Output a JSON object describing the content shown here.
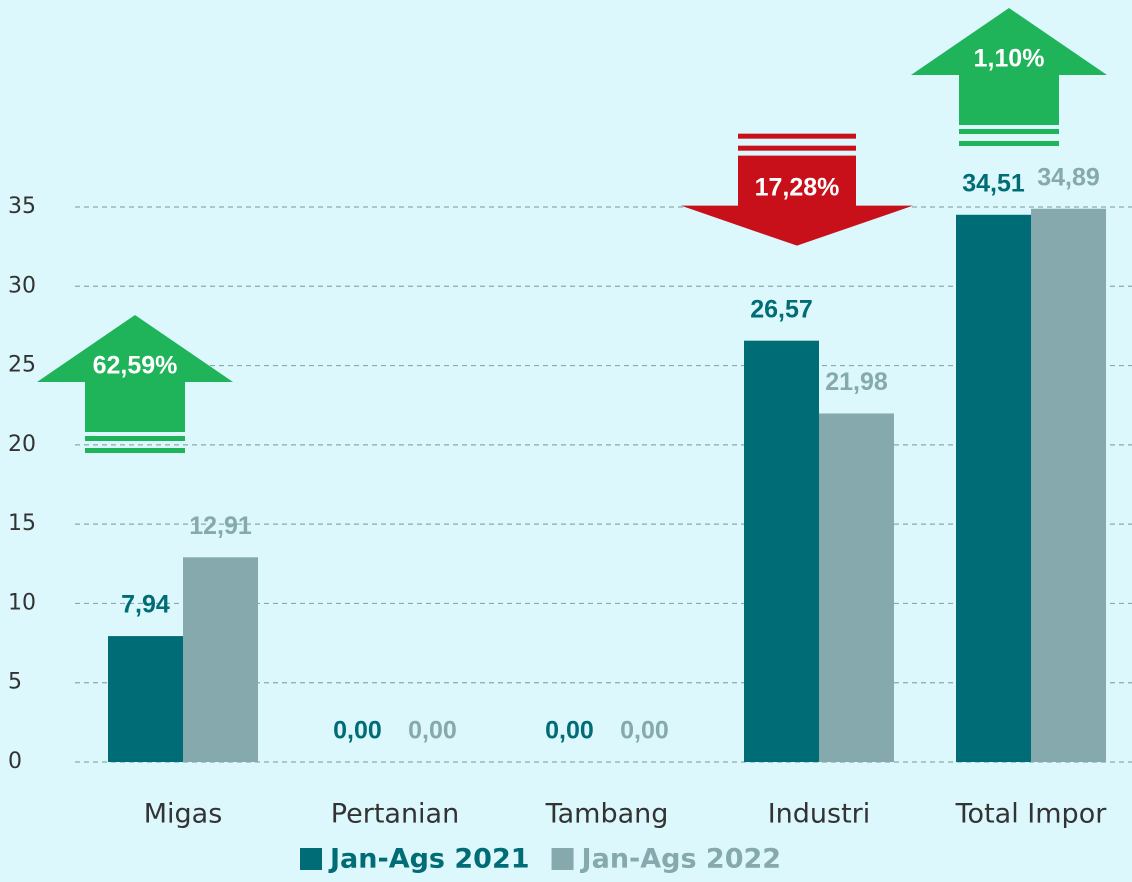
{
  "chart_data": {
    "type": "bar",
    "categories": [
      "Migas",
      "Pertanian",
      "Tambang",
      "Industri",
      "Total Impor"
    ],
    "series": [
      {
        "name": "Jan-Ags 2021",
        "color": "#006c75",
        "values": [
          7.94,
          0,
          0,
          26.57,
          34.51
        ],
        "value_labels": [
          "7,94",
          "0,00",
          "0,00",
          "26,57",
          "34,51"
        ]
      },
      {
        "name": "Jan-Ags 2022",
        "color": "#85a9ac",
        "values": [
          12.91,
          0,
          0,
          21.98,
          34.89
        ],
        "value_labels": [
          "12,91",
          "0,00",
          "0,00",
          "21,98",
          "34,89"
        ]
      }
    ],
    "ylim": [
      0,
      35
    ],
    "yticks": [
      0,
      5,
      10,
      15,
      20,
      25,
      30,
      35
    ],
    "grid": true,
    "legend": "bottom",
    "annotations": [
      {
        "text": "62,59%",
        "direction": "up",
        "color": "#1fb35a",
        "category": "Migas"
      },
      {
        "text": "17,28%",
        "direction": "down",
        "color": "#c8101b",
        "category": "Industri"
      },
      {
        "text": "1,10%",
        "direction": "up",
        "color": "#1fb35a",
        "category": "Total Impor"
      }
    ]
  }
}
